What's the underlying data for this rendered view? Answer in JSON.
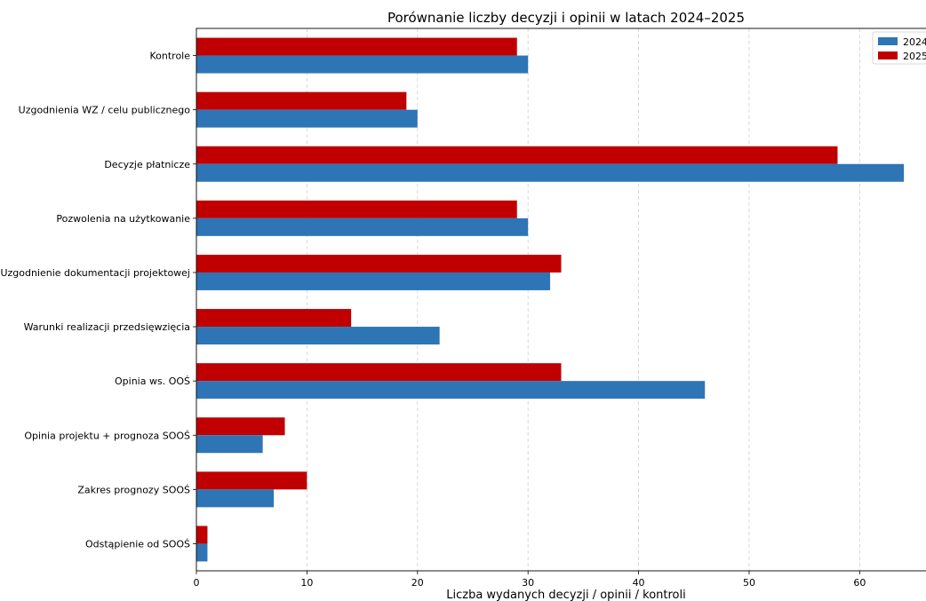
{
  "chart_data": {
    "type": "bar",
    "orientation": "horizontal",
    "title": "Porównanie liczby decyzji i opinii w latach 2024–2025",
    "xlabel": "Liczba wydanych decyzji / opinii / kontroli",
    "ylabel": "",
    "xlim": [
      0,
      66
    ],
    "x_ticks": [
      0,
      10,
      20,
      30,
      40,
      50,
      60
    ],
    "grid": "x-dashed",
    "legend_position": "top-right",
    "categories": [
      "Kontrole",
      "Uzgodnienia WZ / celu publicznego",
      "Decyzje płatnicze",
      "Pozwolenia na użytkowanie",
      "Uzgodnienie dokumentacji projektowej",
      "Warunki realizacji przedsięwzięcia",
      "Opinia ws. OOŚ",
      "Opinia projektu + prognoza SOOŚ",
      "Zakres prognozy SOOŚ",
      "Odstąpienie od SOOŚ"
    ],
    "series": [
      {
        "name": "2024",
        "color": "#2e75b6",
        "values": [
          30,
          20,
          64,
          30,
          32,
          22,
          46,
          6,
          7,
          1
        ]
      },
      {
        "name": "2025",
        "color": "#c00000",
        "values": [
          29,
          19,
          58,
          29,
          33,
          14,
          33,
          8,
          10,
          1
        ]
      }
    ]
  }
}
